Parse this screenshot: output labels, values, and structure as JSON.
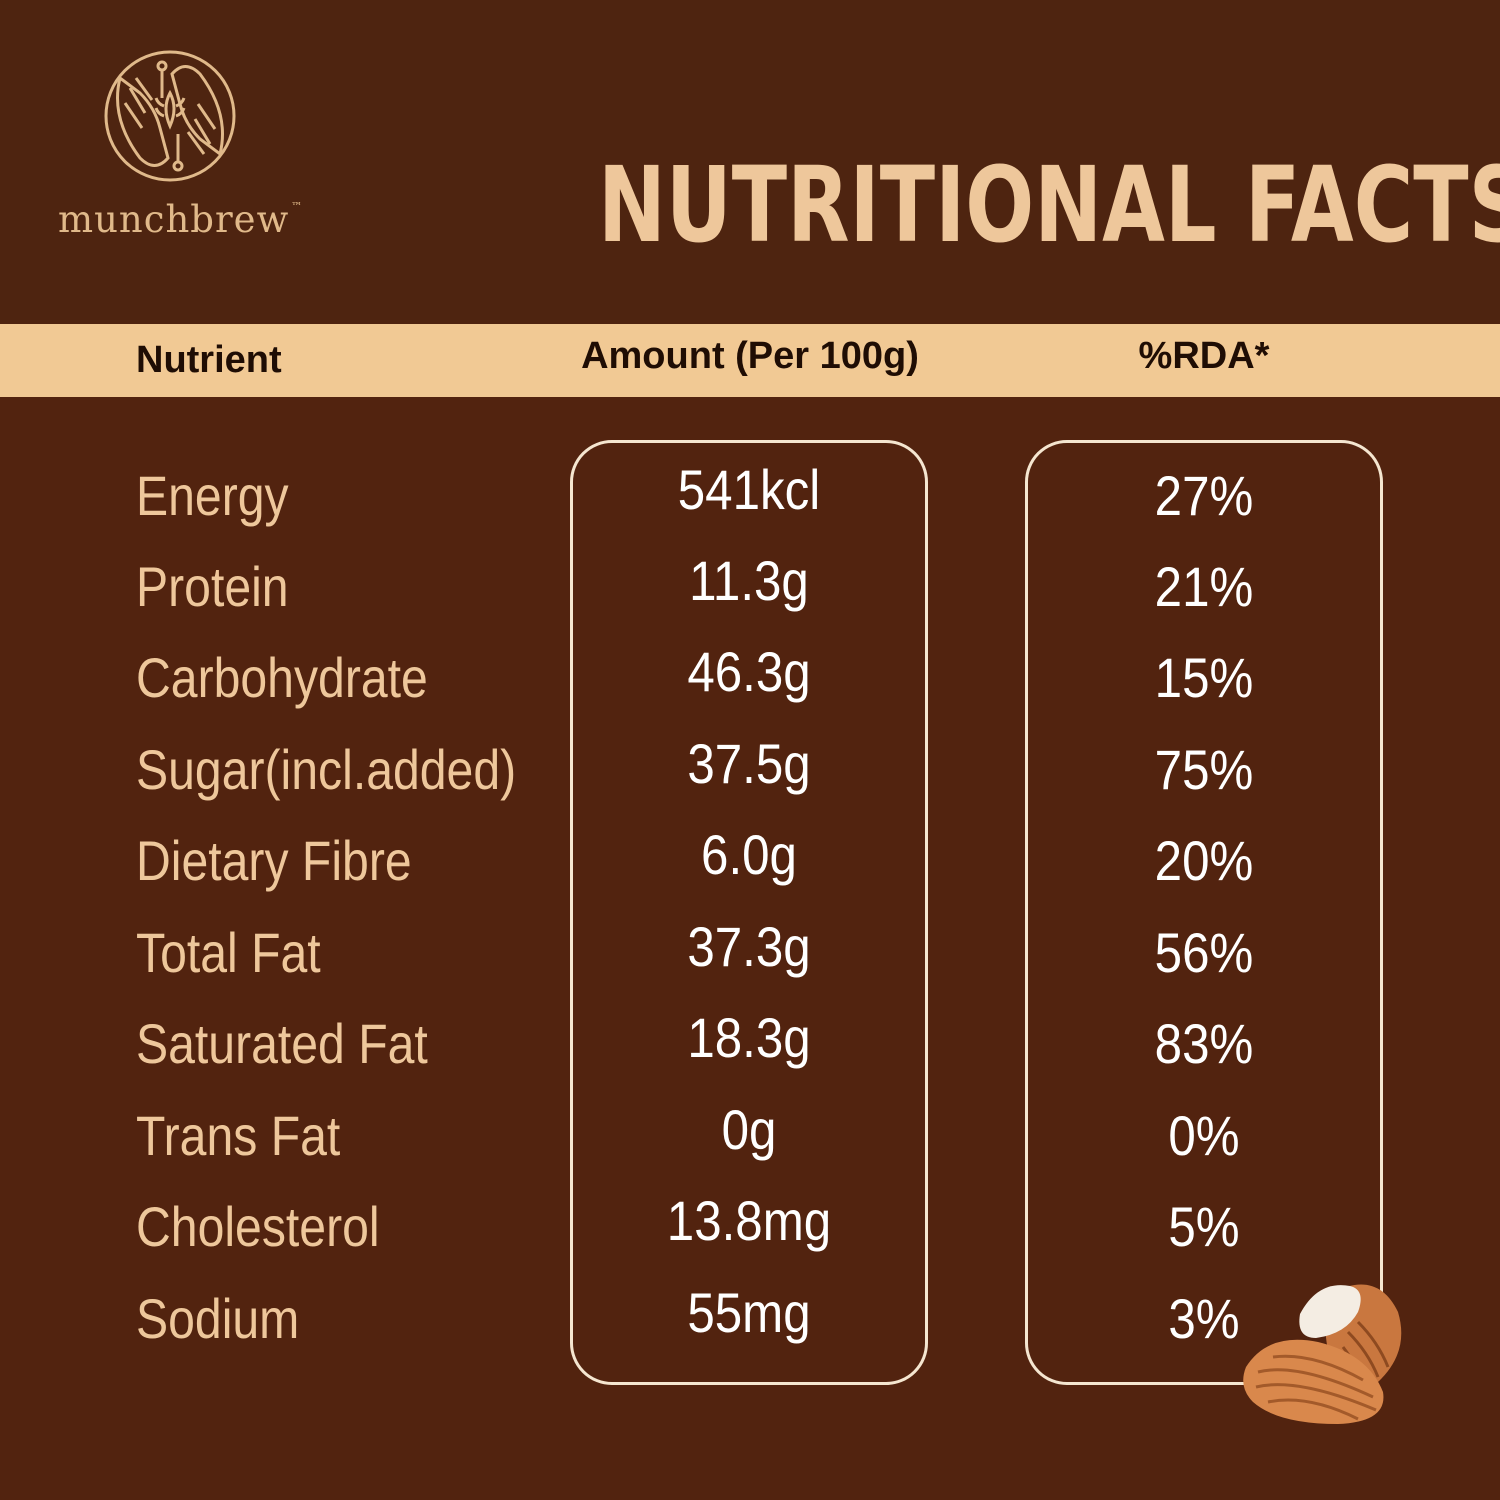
{
  "brand": {
    "name": "munchbrew",
    "trademark": "™"
  },
  "title": "NUTRITIONAL FACTS",
  "table": {
    "headers": {
      "nutrient": "Nutrient",
      "amount": "Amount (Per 100g)",
      "rda": "%RDA*"
    },
    "rows": [
      {
        "nutrient": "Energy",
        "amount": "541kcl",
        "rda": "27%"
      },
      {
        "nutrient": "Protein",
        "amount": "11.3g",
        "rda": "21%"
      },
      {
        "nutrient": "Carbohydrate",
        "amount": "46.3g",
        "rda": "15%"
      },
      {
        "nutrient": "Sugar(incl.added)",
        "amount": "37.5g",
        "rda": "75%"
      },
      {
        "nutrient": "Dietary Fibre",
        "amount": "6.0g",
        "rda": "20%"
      },
      {
        "nutrient": "Total Fat",
        "amount": "37.3g",
        "rda": "56%"
      },
      {
        "nutrient": "Saturated Fat",
        "amount": "18.3g",
        "rda": "83%"
      },
      {
        "nutrient": "Trans Fat",
        "amount": "0g",
        "rda": "0%"
      },
      {
        "nutrient": "Cholesterol",
        "amount": "13.8mg",
        "rda": "5%"
      },
      {
        "nutrient": "Sodium",
        "amount": "55mg",
        "rda": "3%"
      }
    ]
  },
  "colors": {
    "background": "#52230f",
    "header_band": "#f1c994",
    "title": "#eec79b",
    "nutrient_text": "#eec79b",
    "value_text": "#ffffff",
    "box_border": "#f5e6d0"
  },
  "icons": {
    "logo": "hands-circle-logo",
    "decoration": "almonds-icon"
  }
}
